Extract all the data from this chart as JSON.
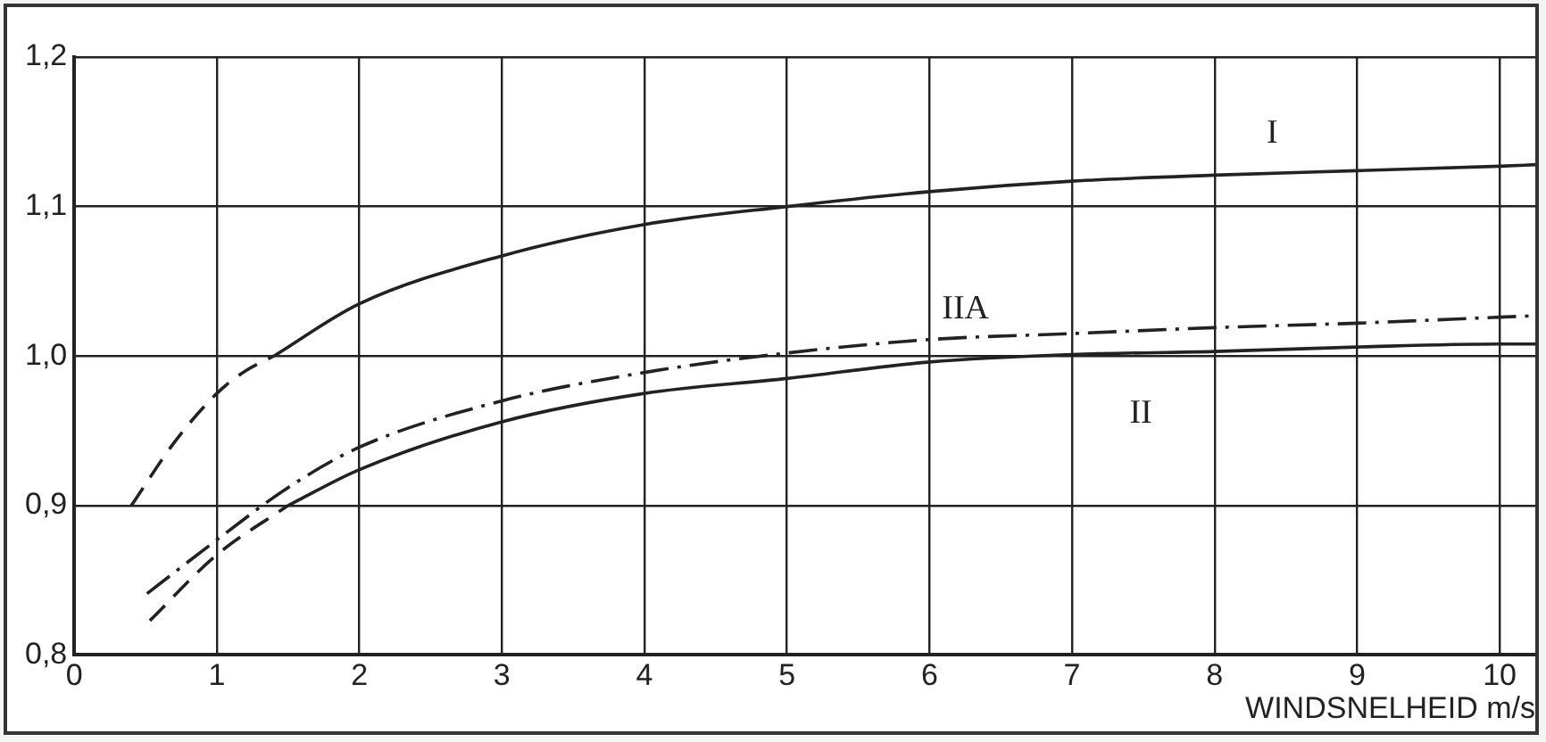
{
  "chart_data": {
    "type": "line",
    "xlabel": "WINDSNELHEID m/s",
    "xlim": [
      0,
      10.25
    ],
    "xticks": [
      0,
      1,
      2,
      3,
      4,
      5,
      6,
      7,
      8,
      9,
      10
    ],
    "ylim": [
      0.8,
      1.2
    ],
    "yticks": [
      {
        "value": 0.8,
        "label": "0,8"
      },
      {
        "value": 0.9,
        "label": "0,9"
      },
      {
        "value": 1.0,
        "label": "1,0"
      },
      {
        "value": 1.1,
        "label": "1,1"
      },
      {
        "value": 1.2,
        "label": "1,2"
      }
    ],
    "grid": true,
    "legend": false,
    "marker": "none",
    "series": [
      {
        "color": "#222222",
        "line_style": "dashed",
        "x": [
          0.4,
          0.7,
          1,
          1.2,
          1.4
        ],
        "values": [
          0.9,
          0.942,
          0.975,
          0.99,
          1.0
        ]
      },
      {
        "name": "I",
        "color": "#222222",
        "line_style": "solid",
        "x": [
          1.4,
          2,
          3,
          4,
          5,
          6,
          7,
          8,
          9,
          10,
          10.25
        ],
        "values": [
          1.0,
          1.035,
          1.067,
          1.088,
          1.1,
          1.11,
          1.117,
          1.121,
          1.124,
          1.127,
          1.128
        ]
      },
      {
        "name": "IIA",
        "color": "#222222",
        "line_style": "dashdot",
        "x": [
          0.51,
          1,
          1.5,
          2,
          3,
          4,
          5,
          6,
          7,
          8,
          9,
          10,
          10.25
        ],
        "values": [
          0.841,
          0.877,
          0.912,
          0.939,
          0.97,
          0.989,
          1.002,
          1.011,
          1.015,
          1.019,
          1.022,
          1.026,
          1.027
        ]
      },
      {
        "color": "#222222",
        "line_style": "dashed",
        "x": [
          0.53,
          1,
          1.5
        ],
        "values": [
          0.823,
          0.867,
          0.9
        ]
      },
      {
        "name": "II",
        "color": "#222222",
        "line_style": "solid",
        "x": [
          1.5,
          2,
          3,
          4,
          5,
          6,
          7,
          8,
          9,
          10,
          10.25
        ],
        "values": [
          0.9,
          0.924,
          0.956,
          0.975,
          0.985,
          0.996,
          1.001,
          1.003,
          1.006,
          1.008,
          1.008
        ]
      }
    ]
  }
}
